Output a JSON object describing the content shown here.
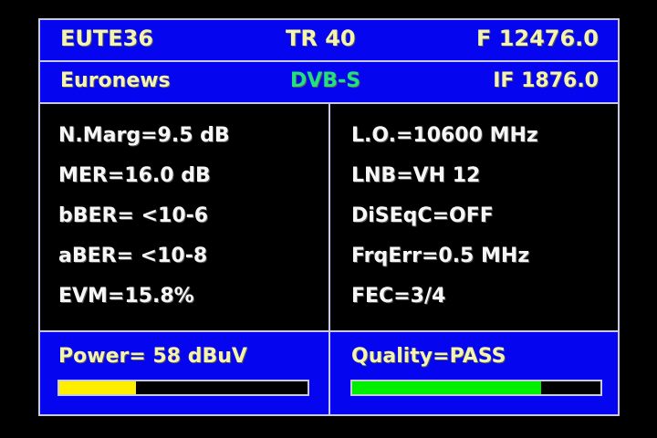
{
  "header": {
    "satellite": "EUTE36",
    "transponder": "TR 40",
    "frequency": "F 12476.0"
  },
  "subheader": {
    "channel": "Euronews",
    "standard": "DVB-S",
    "if_freq": "IF 1876.0",
    "standard_color": "#20e080"
  },
  "left": [
    "N.Marg=9.5 dB",
    "MER=16.0 dB",
    "bBER= <10-6",
    "aBER= <10-8",
    "EVM=15.8%"
  ],
  "right": [
    "L.O.=10600 MHz",
    "LNB=VH 12",
    "DiSEqC=OFF",
    "FrqErr=0.5 MHz",
    "FEC=3/4"
  ],
  "power": {
    "label": "Power= 58 dBuV",
    "level_percent": 31,
    "color": "#ffee00"
  },
  "quality": {
    "label": "Quality=PASS",
    "level_percent": 76,
    "color": "#00ee00"
  }
}
